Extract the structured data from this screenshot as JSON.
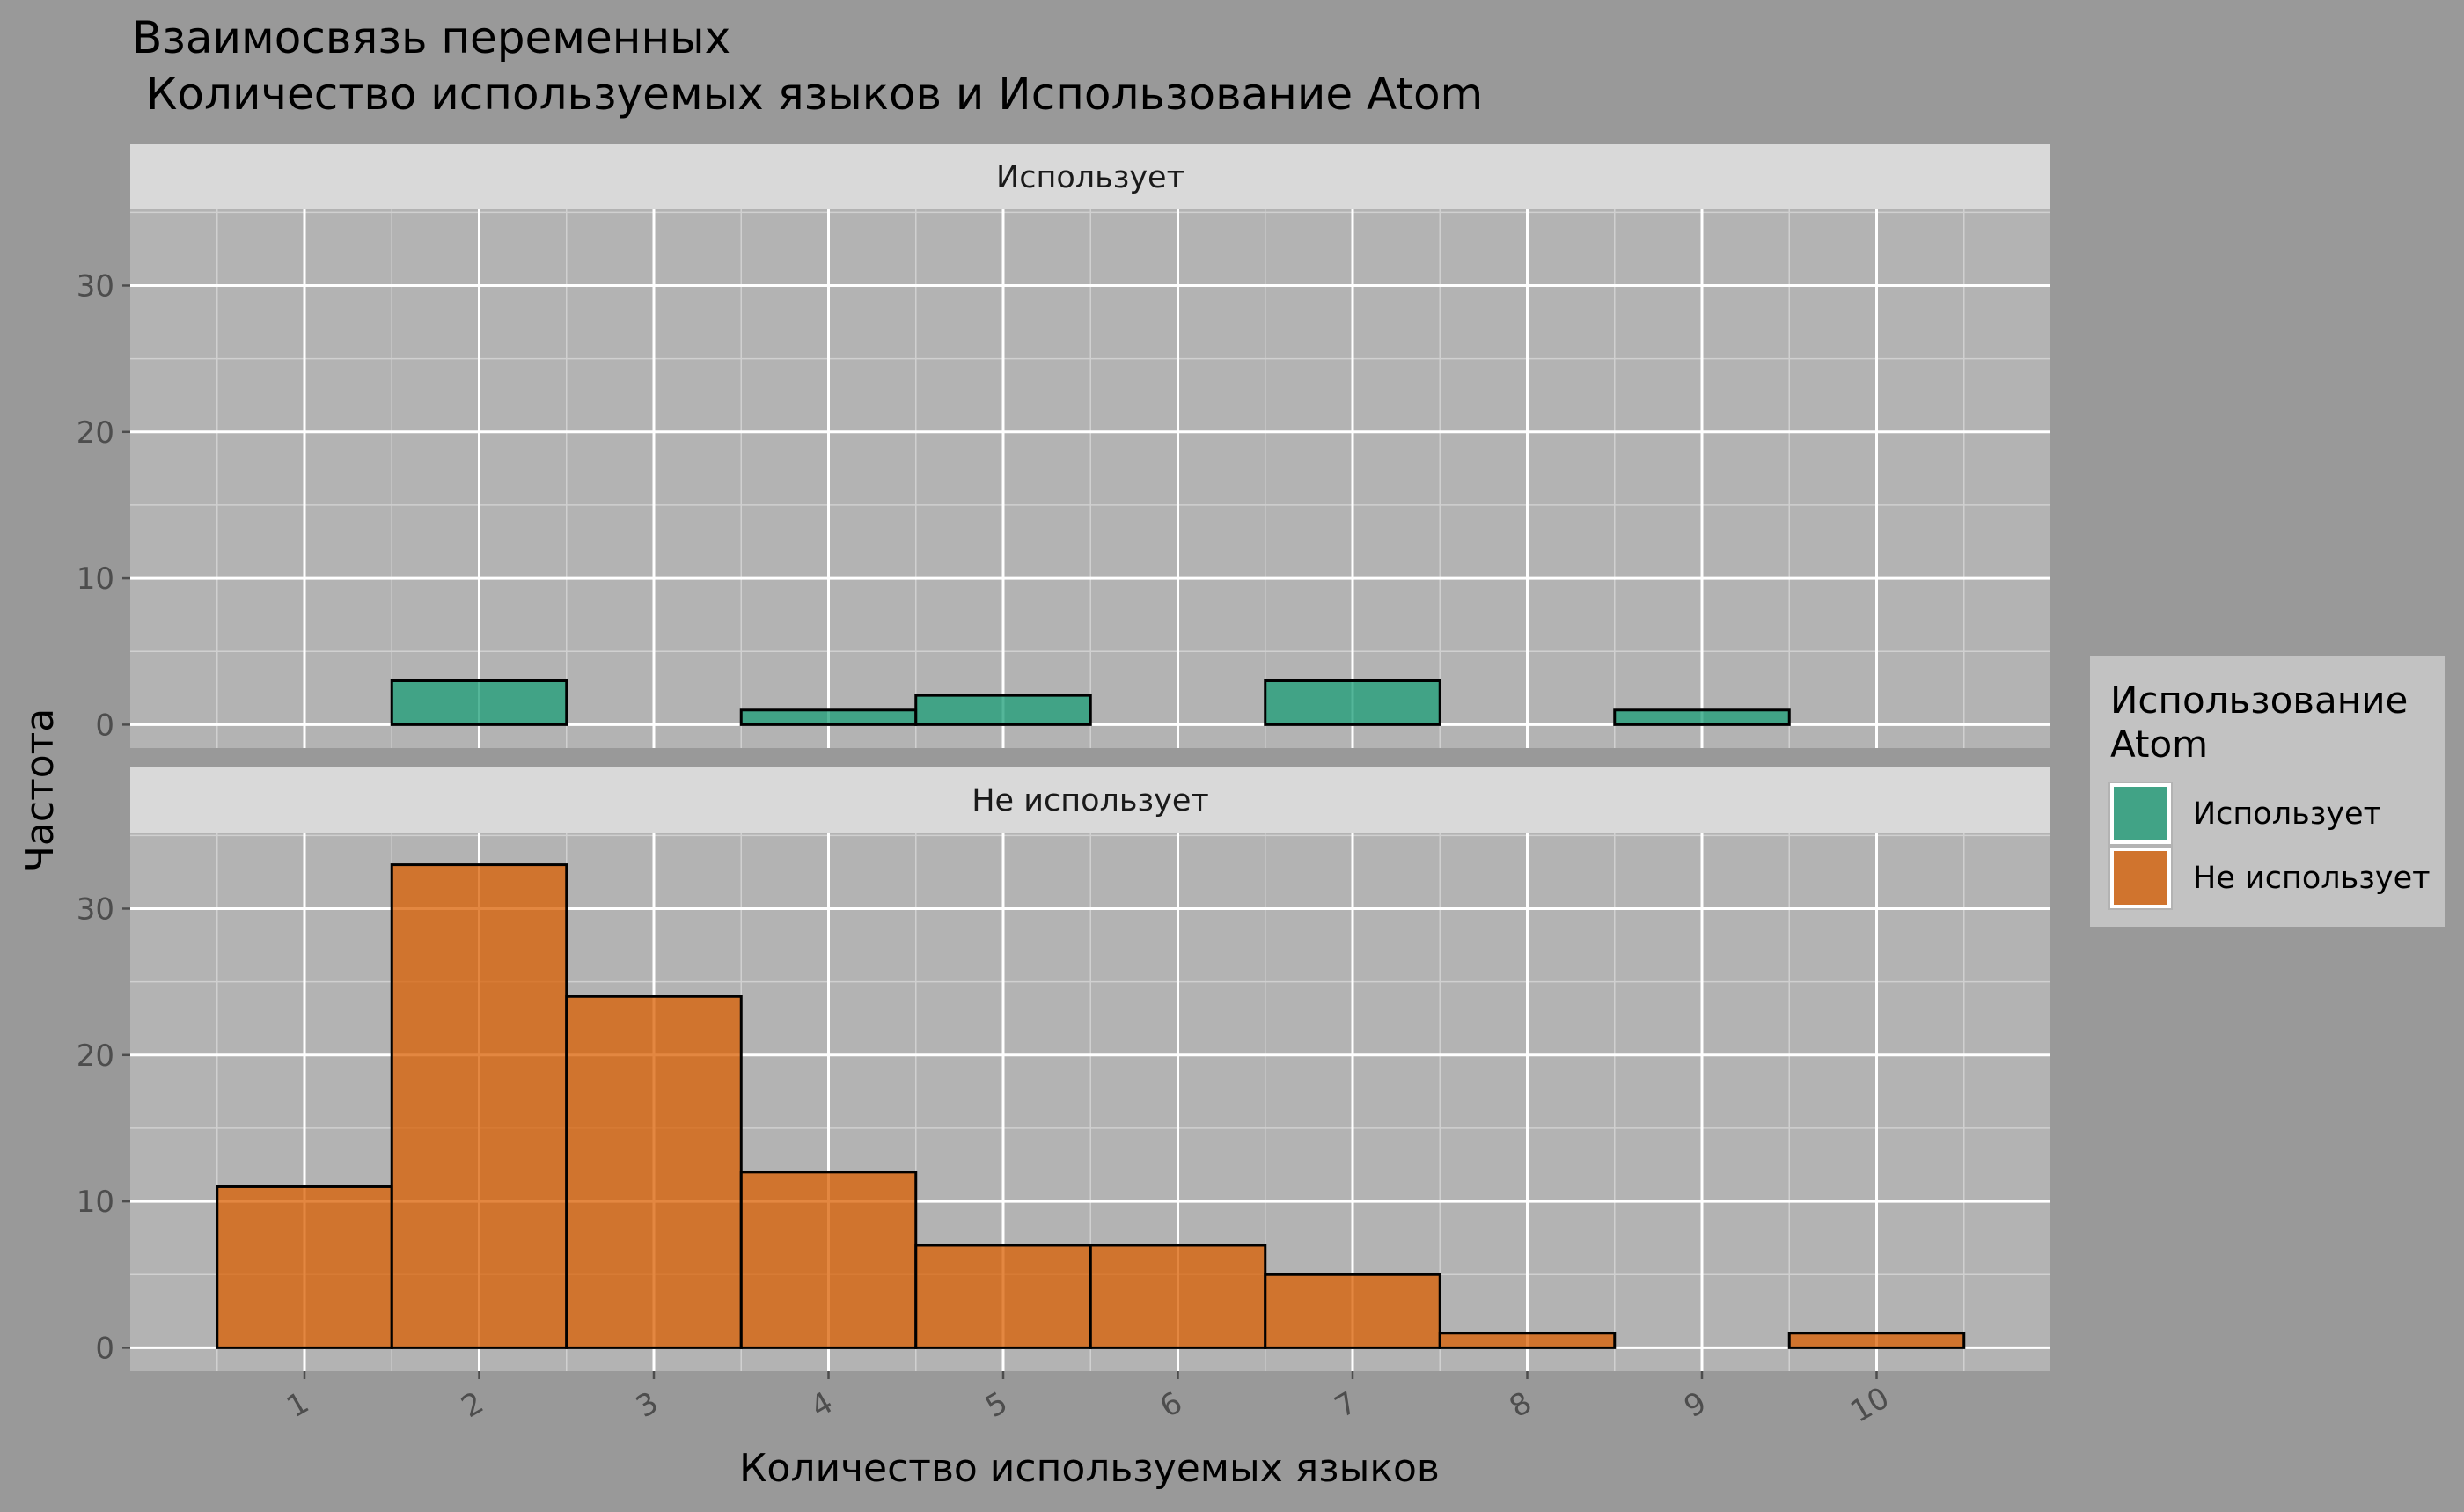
{
  "chart_data": {
    "type": "bar",
    "title_line1": "Взаимосвязь переменных",
    "title_line2": " Количество используемых языков и Использование Atom",
    "xlabel": "Количество используемых языков",
    "ylabel": "Частота",
    "categories": [
      "1",
      "2",
      "3",
      "4",
      "5",
      "6",
      "7",
      "8",
      "9",
      "10"
    ],
    "ylim": [
      -1.6,
      35.2
    ],
    "yticks": [
      "0",
      "10",
      "20",
      "30"
    ],
    "grid": true,
    "legend_position": "right",
    "legend_title_line1": "Использование",
    "legend_title_line2": "Atom",
    "series": [
      {
        "name": "Использует",
        "color": "#1b9e77",
        "values": [
          0,
          3,
          0,
          1,
          2,
          0,
          3,
          0,
          1,
          0
        ]
      },
      {
        "name": "Не использует",
        "color": "#d95f02",
        "values": [
          11,
          33,
          24,
          12,
          7,
          7,
          5,
          1,
          0,
          1
        ]
      }
    ]
  }
}
